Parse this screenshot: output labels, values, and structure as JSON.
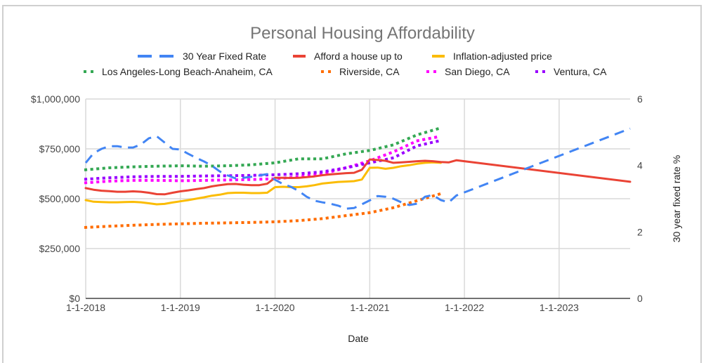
{
  "chart_data": {
    "type": "line",
    "title": "Personal Housing Affordability",
    "xlabel": "Date",
    "ylabel": "",
    "y2label": "30 year fixed rate %",
    "x_start": "2018-01",
    "x_unit": "month",
    "xlim_months": [
      0,
      69
    ],
    "x_ticks": [
      {
        "label": "1-1-2018",
        "month": 0
      },
      {
        "label": "1-1-2019",
        "month": 12
      },
      {
        "label": "1-1-2020",
        "month": 24
      },
      {
        "label": "1-1-2021",
        "month": 36
      },
      {
        "label": "1-1-2022",
        "month": 48
      },
      {
        "label": "1-1-2023",
        "month": 60
      }
    ],
    "ylim": [
      0,
      1000000
    ],
    "y_ticks": [
      {
        "label": "$0",
        "value": 0
      },
      {
        "label": "$250,000",
        "value": 250000
      },
      {
        "label": "$500,000",
        "value": 500000
      },
      {
        "label": "$750,000",
        "value": 750000
      },
      {
        "label": "$1,000,000",
        "value": 1000000
      }
    ],
    "y2lim": [
      0,
      6
    ],
    "y2_ticks": [
      {
        "label": "0",
        "value": 0
      },
      {
        "label": "2",
        "value": 2
      },
      {
        "label": "4",
        "value": 4
      },
      {
        "label": "6",
        "value": 6
      }
    ],
    "grid": true,
    "legend_position": "top",
    "series": [
      {
        "name": "30 Year Fixed Rate",
        "color": "#4285f4",
        "style": "dashed",
        "axis": "right",
        "x": [
          0,
          1,
          2,
          3,
          4,
          5,
          6,
          7,
          8,
          9,
          10,
          11,
          12,
          13,
          14,
          15,
          16,
          17,
          18,
          19,
          20,
          21,
          22,
          23,
          24,
          25,
          26,
          27,
          28,
          29,
          30,
          31,
          32,
          33,
          34,
          35,
          36,
          37,
          38,
          39,
          40,
          41,
          42,
          43,
          44,
          45,
          46,
          47,
          69
        ],
        "values": [
          4.08,
          4.37,
          4.5,
          4.58,
          4.58,
          4.54,
          4.54,
          4.63,
          4.82,
          4.88,
          4.69,
          4.5,
          4.48,
          4.35,
          4.23,
          4.12,
          3.99,
          3.82,
          3.7,
          3.61,
          3.63,
          3.66,
          3.7,
          3.74,
          3.57,
          3.44,
          3.36,
          3.23,
          3.06,
          2.94,
          2.89,
          2.85,
          2.79,
          2.7,
          2.72,
          2.83,
          2.95,
          3.08,
          3.06,
          3.0,
          2.89,
          2.81,
          2.85,
          3.06,
          3.11,
          2.96,
          2.89,
          3.1,
          5.11
        ]
      },
      {
        "name": "Afford a house up to",
        "color": "#ea4335",
        "style": "solid",
        "axis": "left",
        "x": [
          0,
          1,
          2,
          3,
          4,
          5,
          6,
          7,
          8,
          9,
          10,
          11,
          12,
          13,
          14,
          15,
          16,
          17,
          18,
          19,
          20,
          21,
          22,
          23,
          24,
          25,
          26,
          27,
          28,
          29,
          30,
          31,
          32,
          33,
          34,
          35,
          36,
          37,
          38,
          39,
          40,
          41,
          42,
          43,
          44,
          45,
          46,
          47,
          69
        ],
        "values": [
          553000,
          545000,
          540000,
          538000,
          535000,
          535000,
          537000,
          535000,
          530000,
          523000,
          522000,
          530000,
          537000,
          542000,
          548000,
          553000,
          562000,
          568000,
          573000,
          574000,
          570000,
          568000,
          568000,
          575000,
          605000,
          605000,
          604000,
          605000,
          608000,
          612000,
          618000,
          622000,
          625000,
          628000,
          630000,
          645000,
          697000,
          694000,
          690000,
          680000,
          682000,
          685000,
          688000,
          690000,
          688000,
          684000,
          682000,
          693000,
          585000
        ]
      },
      {
        "name": "Inflation-adjusted price",
        "color": "#fbbc04",
        "style": "solid",
        "axis": "left",
        "x": [
          0,
          1,
          2,
          3,
          4,
          5,
          6,
          7,
          8,
          9,
          10,
          11,
          12,
          13,
          14,
          15,
          16,
          17,
          18,
          19,
          20,
          21,
          22,
          23,
          24,
          25,
          26,
          27,
          28,
          29,
          30,
          31,
          32,
          33,
          34,
          35,
          36,
          37,
          38,
          39,
          40,
          41,
          42,
          43,
          44,
          45
        ],
        "values": [
          493000,
          485000,
          483000,
          482000,
          482000,
          483000,
          484000,
          482000,
          477000,
          472000,
          474000,
          481000,
          487000,
          493000,
          500000,
          507000,
          515000,
          520000,
          528000,
          530000,
          530000,
          528000,
          528000,
          530000,
          558000,
          560000,
          558000,
          558000,
          562000,
          568000,
          576000,
          580000,
          584000,
          586000,
          588000,
          596000,
          655000,
          656000,
          650000,
          655000,
          663000,
          668000,
          675000,
          680000,
          682000,
          680000
        ]
      },
      {
        "name": "Los Angeles-Long Beach-Anaheim, CA",
        "color": "#34a853",
        "style": "dotted",
        "axis": "left",
        "x": [
          0,
          3,
          6,
          9,
          12,
          15,
          18,
          21,
          24,
          27,
          30,
          33,
          36,
          39,
          42,
          45
        ],
        "values": [
          645000,
          655000,
          660000,
          663000,
          665000,
          663000,
          665000,
          670000,
          680000,
          700000,
          700000,
          725000,
          742000,
          770000,
          820000,
          855000
        ]
      },
      {
        "name": "Riverside, CA",
        "color": "#ff6d01",
        "style": "dotted",
        "axis": "left",
        "x": [
          0,
          3,
          6,
          9,
          12,
          15,
          18,
          21,
          24,
          27,
          30,
          33,
          36,
          39,
          42,
          45
        ],
        "values": [
          356000,
          362000,
          367000,
          371000,
          374000,
          377000,
          379000,
          381000,
          384000,
          390000,
          400000,
          415000,
          430000,
          455000,
          490000,
          525000
        ]
      },
      {
        "name": "San Diego, CA",
        "color": "#ff00ff",
        "style": "dotted",
        "axis": "left",
        "x": [
          0,
          3,
          6,
          9,
          12,
          15,
          18,
          21,
          24,
          27,
          30,
          33,
          36,
          39,
          42,
          45
        ],
        "values": [
          580000,
          588000,
          592000,
          592000,
          590000,
          592000,
          594000,
          596000,
          600000,
          610000,
          625000,
          655000,
          690000,
          735000,
          790000,
          813000
        ]
      },
      {
        "name": "Ventura, CA",
        "color": "#9900ff",
        "style": "dotted",
        "axis": "left",
        "x": [
          0,
          3,
          6,
          9,
          12,
          15,
          18,
          21,
          24,
          27,
          30,
          33,
          36,
          39,
          42,
          45
        ],
        "values": [
          598000,
          605000,
          610000,
          612000,
          612000,
          614000,
          615000,
          617000,
          620000,
          625000,
          635000,
          655000,
          680000,
          705000,
          765000,
          792000
        ]
      }
    ]
  }
}
